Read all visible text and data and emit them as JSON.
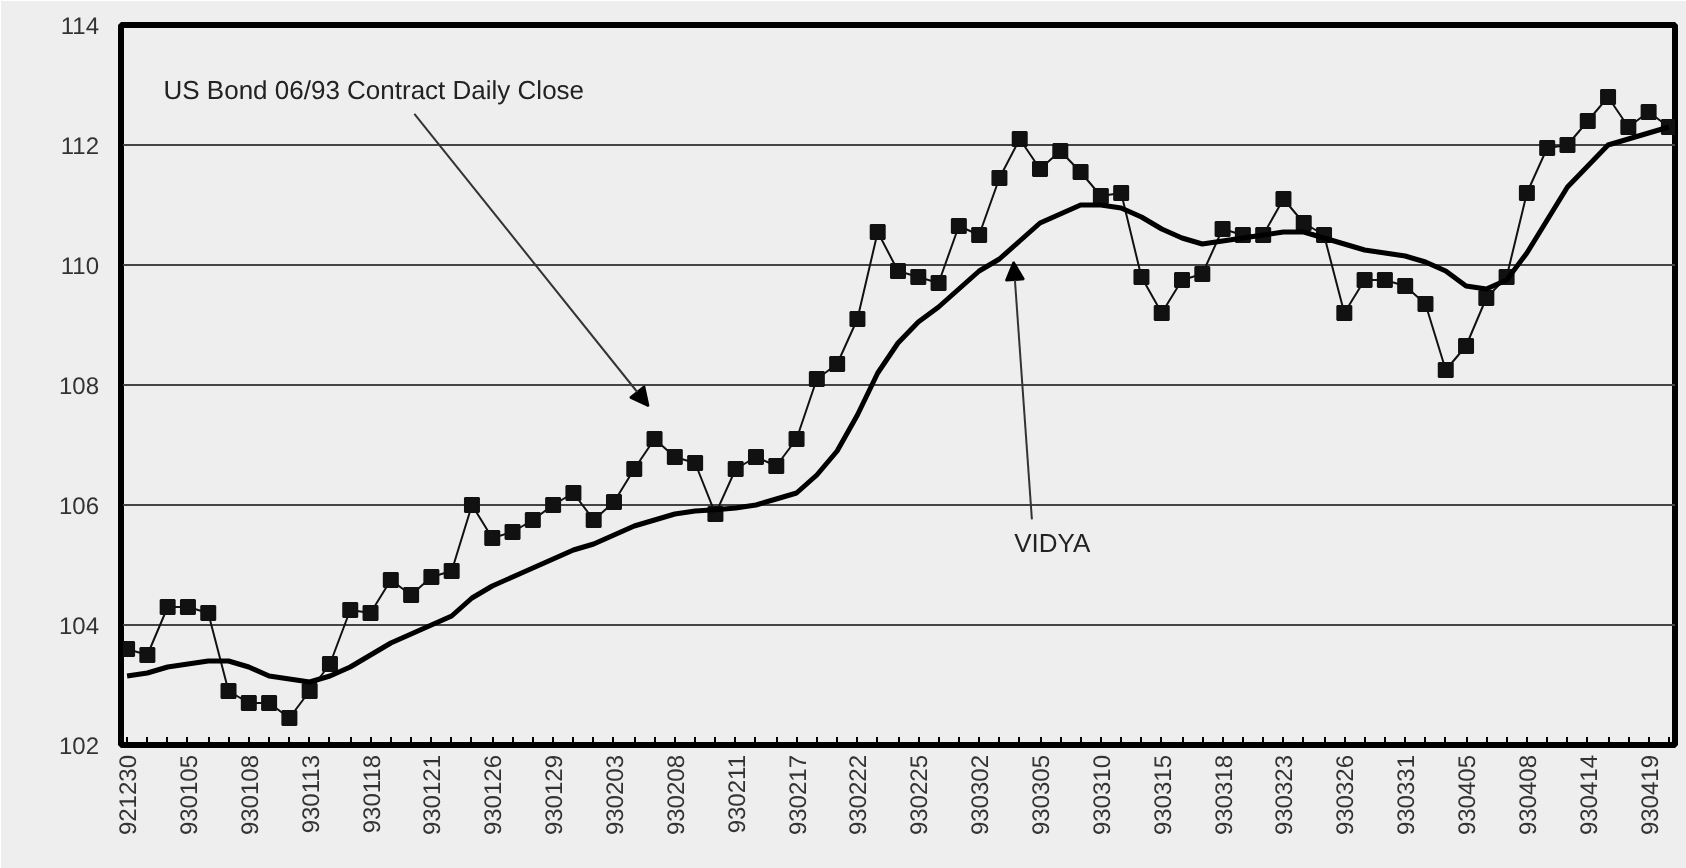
{
  "chart_data": {
    "type": "line",
    "categories": [
      "921230",
      null,
      null,
      "930105",
      null,
      null,
      "930108",
      null,
      null,
      "930113",
      null,
      null,
      "930118",
      null,
      null,
      "930121",
      null,
      null,
      "930126",
      null,
      null,
      "930129",
      null,
      null,
      "930203",
      null,
      null,
      "930208",
      null,
      null,
      "930211",
      null,
      null,
      "930217",
      null,
      null,
      "930222",
      null,
      null,
      "930225",
      null,
      null,
      "930302",
      null,
      null,
      "930305",
      null,
      null,
      "930310",
      null,
      null,
      "930315",
      null,
      null,
      "930318",
      null,
      null,
      "930323",
      null,
      null,
      "930326",
      null,
      null,
      "930331",
      null,
      null,
      "930405",
      null,
      null,
      "930408",
      null,
      null,
      "930414",
      null,
      null,
      "930419",
      null
    ],
    "series": [
      {
        "color": "#111111",
        "marker": "square",
        "values": [
          103.6,
          103.5,
          104.3,
          104.3,
          104.2,
          102.9,
          102.7,
          102.7,
          102.45,
          102.9,
          103.35,
          104.25,
          104.2,
          104.75,
          104.5,
          104.8,
          104.9,
          106.0,
          105.45,
          105.55,
          105.75,
          106.0,
          106.2,
          105.75,
          106.05,
          106.6,
          107.1,
          106.8,
          106.7,
          105.85,
          106.6,
          106.8,
          106.65,
          107.1,
          108.1,
          108.35,
          109.1,
          110.55,
          109.9,
          109.8,
          109.7,
          110.65,
          110.5,
          111.45,
          112.1,
          111.6,
          111.9,
          111.55,
          111.15,
          111.2,
          109.8,
          109.2,
          109.75,
          109.85,
          110.6,
          110.5,
          110.5,
          111.1,
          110.7,
          110.5,
          109.2,
          109.75,
          109.75,
          109.65,
          109.35,
          108.25,
          108.65,
          109.45,
          109.8,
          111.2,
          111.95,
          112.0,
          112.4,
          112.8,
          112.3,
          112.55,
          112.3
        ]
      },
      {
        "color": "#000000",
        "marker": "none",
        "values": [
          103.15,
          103.2,
          103.3,
          103.35,
          103.4,
          103.4,
          103.3,
          103.15,
          103.1,
          103.05,
          103.15,
          103.3,
          103.5,
          103.7,
          103.85,
          104.0,
          104.15,
          104.45,
          104.65,
          104.8,
          104.95,
          105.1,
          105.25,
          105.35,
          105.5,
          105.65,
          105.75,
          105.85,
          105.9,
          105.92,
          105.95,
          106.0,
          106.1,
          106.2,
          106.5,
          106.9,
          107.5,
          108.2,
          108.7,
          109.05,
          109.3,
          109.6,
          109.9,
          110.1,
          110.4,
          110.7,
          110.85,
          111.0,
          111.0,
          110.95,
          110.8,
          110.6,
          110.45,
          110.35,
          110.4,
          110.45,
          110.5,
          110.55,
          110.55,
          110.45,
          110.35,
          110.25,
          110.2,
          110.15,
          110.05,
          109.9,
          109.65,
          109.6,
          109.75,
          110.2,
          110.75,
          111.3,
          111.65,
          112.0,
          112.1,
          112.2,
          112.3
        ]
      }
    ],
    "ylim": [
      102,
      114
    ],
    "yticks": [
      102,
      104,
      106,
      108,
      110,
      112,
      114
    ],
    "grid": "y",
    "annotations": [
      "US Bond 06/93 Contract Daily Close",
      "VIDYA"
    ]
  }
}
